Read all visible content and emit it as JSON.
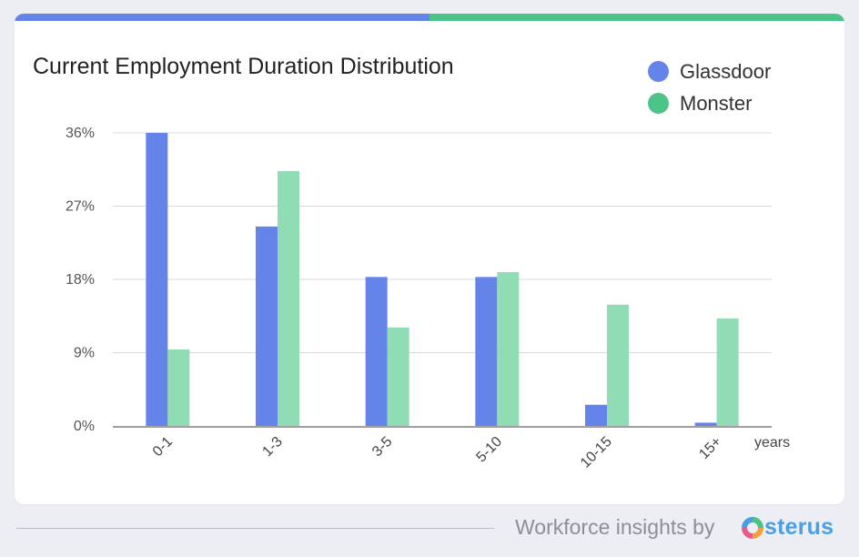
{
  "colors": {
    "glassdoor": "#6484ea",
    "monster": "#8fdcb5",
    "topbar_left": "#6484ea",
    "topbar_right": "#4cc487",
    "legend_monster": "#4cc487"
  },
  "chart_data": {
    "type": "bar",
    "title": "Current Employment Duration Distribution",
    "categories": [
      "0-1",
      "1-3",
      "3-5",
      "5-10",
      "10-15",
      "15+"
    ],
    "series": [
      {
        "name": "Glassdoor",
        "values": [
          36,
          24.5,
          18.3,
          18.3,
          2.6,
          0.4
        ]
      },
      {
        "name": "Monster",
        "values": [
          9.4,
          31.3,
          12.1,
          18.9,
          14.9,
          13.2
        ]
      }
    ],
    "xlabel": "years",
    "ylabel": "",
    "ylim": [
      0,
      36
    ],
    "yticks": [
      "0%",
      "9%",
      "18%",
      "27%",
      "36%"
    ],
    "ytick_values": [
      0,
      9,
      18,
      27,
      36
    ],
    "grid": true,
    "legend_position": "top-right"
  },
  "footer": {
    "text": "Workforce insights by",
    "brand": "sterus",
    "logo_icon": "osterus-logo-icon"
  }
}
